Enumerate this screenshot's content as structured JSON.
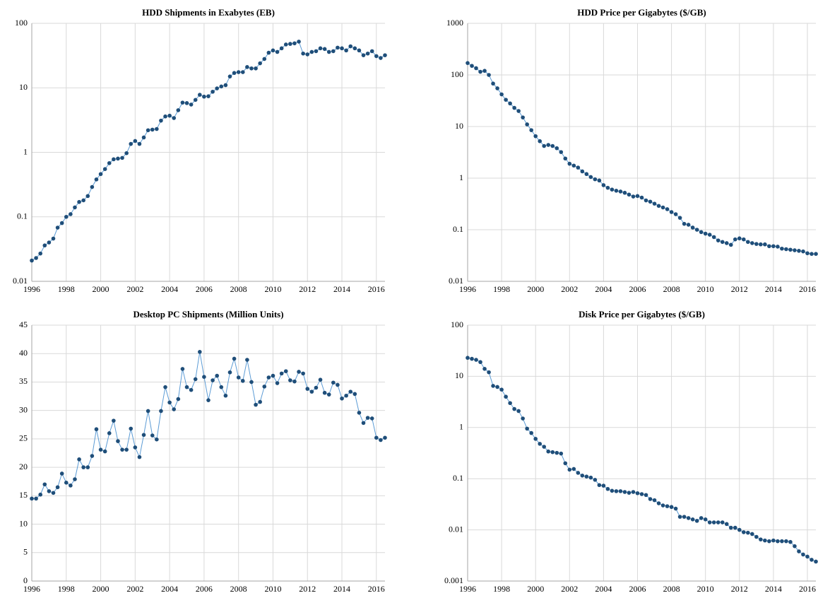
{
  "chart_data": [
    {
      "type": "line",
      "title": "HDD Shipments in Exabytes (EB)",
      "log": true,
      "grid": true,
      "color": "#5b9bd5",
      "marker_color": "#1f4e79",
      "x": [
        1996,
        1996.25,
        1996.5,
        1996.75,
        1997,
        1997.25,
        1997.5,
        1997.75,
        1998,
        1998.25,
        1998.5,
        1998.75,
        1999,
        1999.25,
        1999.5,
        1999.75,
        2000,
        2000.25,
        2000.5,
        2000.75,
        2001,
        2001.25,
        2001.5,
        2001.75,
        2002,
        2002.25,
        2002.5,
        2002.75,
        2003,
        2003.25,
        2003.5,
        2003.75,
        2004,
        2004.25,
        2004.5,
        2004.75,
        2005,
        2005.25,
        2005.5,
        2005.75,
        2006,
        2006.25,
        2006.5,
        2006.75,
        2007,
        2007.25,
        2007.5,
        2007.75,
        2008,
        2008.25,
        2008.5,
        2008.75,
        2009,
        2009.25,
        2009.5,
        2009.75,
        2010,
        2010.25,
        2010.5,
        2010.75,
        2011,
        2011.25,
        2011.5,
        2011.75,
        2012,
        2012.25,
        2012.5,
        2012.75,
        2013,
        2013.25,
        2013.5,
        2013.75,
        2014,
        2014.25,
        2014.5,
        2014.75,
        2015,
        2015.25,
        2015.5,
        2015.75,
        2016,
        2016.25,
        2016.5
      ],
      "values": [
        0.021,
        0.023,
        0.027,
        0.036,
        0.04,
        0.046,
        0.068,
        0.08,
        0.1,
        0.11,
        0.14,
        0.17,
        0.18,
        0.21,
        0.29,
        0.38,
        0.46,
        0.55,
        0.68,
        0.78,
        0.8,
        0.82,
        0.97,
        1.35,
        1.5,
        1.35,
        1.7,
        2.2,
        2.25,
        2.3,
        3.1,
        3.6,
        3.7,
        3.4,
        4.5,
        5.9,
        5.8,
        5.5,
        6.5,
        7.8,
        7.3,
        7.4,
        8.7,
        9.8,
        10.5,
        11,
        15,
        17,
        17.5,
        17.5,
        21,
        20,
        20,
        24,
        28,
        35,
        38,
        36,
        41,
        47,
        48,
        49,
        52,
        34,
        33,
        36,
        37,
        41,
        40,
        36,
        37,
        42,
        41,
        38,
        44,
        41,
        38,
        32,
        34,
        37,
        31,
        29,
        32
      ],
      "xlim": [
        1996,
        2016.5
      ],
      "xticks": [
        1996,
        1998,
        2000,
        2002,
        2004,
        2006,
        2008,
        2010,
        2012,
        2014,
        2016
      ],
      "ylim": [
        0.01,
        100
      ],
      "yticks": [
        0.01,
        0.1,
        1,
        10,
        100
      ]
    },
    {
      "type": "line",
      "title": "HDD Price per Gigabytes ($/GB)",
      "log": true,
      "grid": true,
      "color": "#5b9bd5",
      "marker_color": "#1f4e79",
      "x": [
        1996,
        1996.25,
        1996.5,
        1996.75,
        1997,
        1997.25,
        1997.5,
        1997.75,
        1998,
        1998.25,
        1998.5,
        1998.75,
        1999,
        1999.25,
        1999.5,
        1999.75,
        2000,
        2000.25,
        2000.5,
        2000.75,
        2001,
        2001.25,
        2001.5,
        2001.75,
        2002,
        2002.25,
        2002.5,
        2002.75,
        2003,
        2003.25,
        2003.5,
        2003.75,
        2004,
        2004.25,
        2004.5,
        2004.75,
        2005,
        2005.25,
        2005.5,
        2005.75,
        2006,
        2006.25,
        2006.5,
        2006.75,
        2007,
        2007.25,
        2007.5,
        2007.75,
        2008,
        2008.25,
        2008.5,
        2008.75,
        2009,
        2009.25,
        2009.5,
        2009.75,
        2010,
        2010.25,
        2010.5,
        2010.75,
        2011,
        2011.25,
        2011.5,
        2011.75,
        2012,
        2012.25,
        2012.5,
        2012.75,
        2013,
        2013.25,
        2013.5,
        2013.75,
        2014,
        2014.25,
        2014.5,
        2014.75,
        2015,
        2015.25,
        2015.5,
        2015.75,
        2016,
        2016.25,
        2016.5
      ],
      "values": [
        170,
        150,
        135,
        115,
        120,
        100,
        68,
        55,
        42,
        33,
        28,
        23,
        20,
        15,
        11,
        8.5,
        6.5,
        5.2,
        4.2,
        4.4,
        4.2,
        3.8,
        3.2,
        2.4,
        1.9,
        1.75,
        1.6,
        1.35,
        1.2,
        1.05,
        0.95,
        0.9,
        0.73,
        0.65,
        0.6,
        0.57,
        0.55,
        0.52,
        0.48,
        0.44,
        0.45,
        0.42,
        0.37,
        0.35,
        0.32,
        0.29,
        0.27,
        0.25,
        0.22,
        0.2,
        0.17,
        0.13,
        0.125,
        0.11,
        0.1,
        0.09,
        0.084,
        0.08,
        0.072,
        0.062,
        0.058,
        0.055,
        0.051,
        0.065,
        0.068,
        0.065,
        0.058,
        0.055,
        0.053,
        0.052,
        0.052,
        0.048,
        0.048,
        0.047,
        0.043,
        0.042,
        0.041,
        0.04,
        0.039,
        0.038,
        0.035,
        0.034,
        0.034
      ],
      "xlim": [
        1996,
        2016.5
      ],
      "xticks": [
        1996,
        1998,
        2000,
        2002,
        2004,
        2006,
        2008,
        2010,
        2012,
        2014,
        2016
      ],
      "ylim": [
        0.01,
        1000
      ],
      "yticks": [
        0.01,
        0.1,
        1,
        10,
        100,
        1000
      ]
    },
    {
      "type": "line",
      "title": "Desktop PC Shipments (Million Units)",
      "log": false,
      "grid": true,
      "color": "#5b9bd5",
      "marker_color": "#1f4e79",
      "x": [
        1996,
        1996.25,
        1996.5,
        1996.75,
        1997,
        1997.25,
        1997.5,
        1997.75,
        1998,
        1998.25,
        1998.5,
        1998.75,
        1999,
        1999.25,
        1999.5,
        1999.75,
        2000,
        2000.25,
        2000.5,
        2000.75,
        2001,
        2001.25,
        2001.5,
        2001.75,
        2002,
        2002.25,
        2002.5,
        2002.75,
        2003,
        2003.25,
        2003.5,
        2003.75,
        2004,
        2004.25,
        2004.5,
        2004.75,
        2005,
        2005.25,
        2005.5,
        2005.75,
        2006,
        2006.25,
        2006.5,
        2006.75,
        2007,
        2007.25,
        2007.5,
        2007.75,
        2008,
        2008.25,
        2008.5,
        2008.75,
        2009,
        2009.25,
        2009.5,
        2009.75,
        2010,
        2010.25,
        2010.5,
        2010.75,
        2011,
        2011.25,
        2011.5,
        2011.75,
        2012,
        2012.25,
        2012.5,
        2012.75,
        2013,
        2013.25,
        2013.5,
        2013.75,
        2014,
        2014.25,
        2014.5,
        2014.75,
        2015,
        2015.25,
        2015.5,
        2015.75,
        2016,
        2016.25,
        2016.5
      ],
      "values": [
        14.5,
        14.5,
        15.2,
        17,
        15.8,
        15.5,
        16.5,
        18.9,
        17.3,
        16.8,
        17.9,
        21.4,
        20,
        20,
        22,
        26.7,
        23.1,
        22.8,
        26,
        28.2,
        24.6,
        23.1,
        23.1,
        26.8,
        23.5,
        21.8,
        25.7,
        29.9,
        25.6,
        24.9,
        29.9,
        34.1,
        31.4,
        30.2,
        32,
        37.3,
        34.1,
        33.6,
        35.5,
        40.3,
        35.9,
        31.8,
        35.3,
        36.1,
        34.1,
        32.6,
        36.7,
        39.1,
        35.8,
        35.2,
        38.9,
        35,
        31,
        31.5,
        34.2,
        35.8,
        36.1,
        34.8,
        36.5,
        36.9,
        35.3,
        35.1,
        36.8,
        36.5,
        33.8,
        33.3,
        34,
        35.4,
        33.1,
        32.8,
        34.9,
        34.5,
        32.1,
        32.6,
        33.3,
        32.9,
        29.6,
        27.8,
        28.7,
        28.6,
        25.2,
        24.8,
        25.2
      ],
      "xlim": [
        1996,
        2016.5
      ],
      "xticks": [
        1996,
        1998,
        2000,
        2002,
        2004,
        2006,
        2008,
        2010,
        2012,
        2014,
        2016
      ],
      "ylim": [
        0,
        45
      ],
      "yticks": [
        0,
        5,
        10,
        15,
        20,
        25,
        30,
        35,
        40,
        45
      ]
    },
    {
      "type": "line",
      "title": "Disk Price per Gigabytes ($/GB)",
      "log": true,
      "grid": true,
      "color": "#5b9bd5",
      "marker_color": "#1f4e79",
      "x": [
        1996,
        1996.25,
        1996.5,
        1996.75,
        1997,
        1997.25,
        1997.5,
        1997.75,
        1998,
        1998.25,
        1998.5,
        1998.75,
        1999,
        1999.25,
        1999.5,
        1999.75,
        2000,
        2000.25,
        2000.5,
        2000.75,
        2001,
        2001.25,
        2001.5,
        2001.75,
        2002,
        2002.25,
        2002.5,
        2002.75,
        2003,
        2003.25,
        2003.5,
        2003.75,
        2004,
        2004.25,
        2004.5,
        2004.75,
        2005,
        2005.25,
        2005.5,
        2005.75,
        2006,
        2006.25,
        2006.5,
        2006.75,
        2007,
        2007.25,
        2007.5,
        2007.75,
        2008,
        2008.25,
        2008.5,
        2008.75,
        2009,
        2009.25,
        2009.5,
        2009.75,
        2010,
        2010.25,
        2010.5,
        2010.75,
        2011,
        2011.25,
        2011.5,
        2011.75,
        2012,
        2012.25,
        2012.5,
        2012.75,
        2013,
        2013.25,
        2013.5,
        2013.75,
        2014,
        2014.25,
        2014.5,
        2014.75,
        2015,
        2015.25,
        2015.5,
        2015.75,
        2016,
        2016.25,
        2016.5
      ],
      "values": [
        23,
        22,
        21,
        19,
        14,
        12,
        6.5,
        6.2,
        5.5,
        4,
        3,
        2.3,
        2.1,
        1.5,
        0.95,
        0.78,
        0.6,
        0.48,
        0.42,
        0.34,
        0.33,
        0.32,
        0.31,
        0.2,
        0.15,
        0.155,
        0.13,
        0.115,
        0.11,
        0.105,
        0.095,
        0.075,
        0.073,
        0.063,
        0.058,
        0.057,
        0.057,
        0.055,
        0.053,
        0.055,
        0.052,
        0.05,
        0.048,
        0.04,
        0.038,
        0.033,
        0.03,
        0.029,
        0.028,
        0.026,
        0.018,
        0.018,
        0.017,
        0.016,
        0.015,
        0.017,
        0.016,
        0.014,
        0.014,
        0.014,
        0.014,
        0.013,
        0.011,
        0.011,
        0.01,
        0.009,
        0.0088,
        0.0083,
        0.0073,
        0.0065,
        0.0062,
        0.006,
        0.0062,
        0.006,
        0.006,
        0.006,
        0.0058,
        0.0048,
        0.0038,
        0.0033,
        0.003,
        0.0026,
        0.0024
      ],
      "xlim": [
        1996,
        2016.5
      ],
      "xticks": [
        1996,
        1998,
        2000,
        2002,
        2004,
        2006,
        2008,
        2010,
        2012,
        2014,
        2016
      ],
      "ylim": [
        0.001,
        100
      ],
      "yticks": [
        0.001,
        0.01,
        0.1,
        1,
        10,
        100
      ]
    }
  ]
}
